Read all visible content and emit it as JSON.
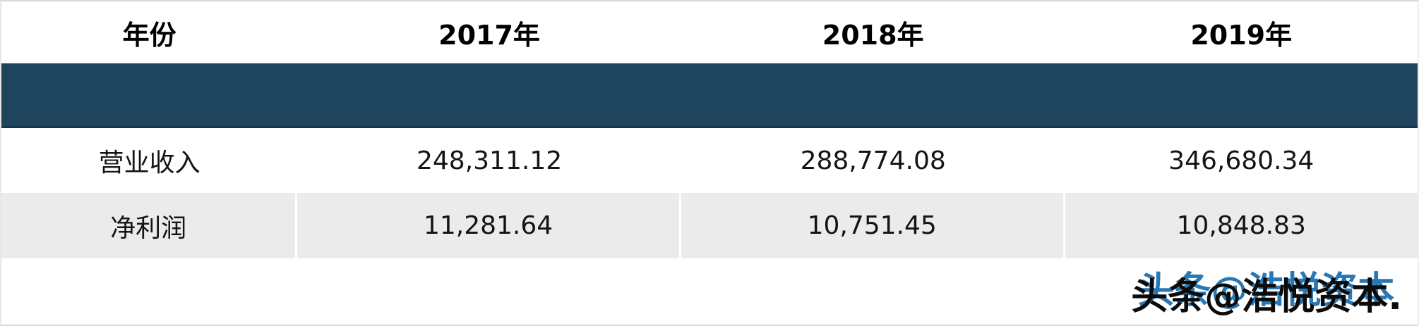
{
  "colors": {
    "band_navy": "#1f455e",
    "row_alt_gray": "#ebebeb",
    "watermark_blue": "#2878b5",
    "watermark_black": "#0b0b0b",
    "border_gray": "#d8d8d8"
  },
  "table": {
    "columns": [
      "年份",
      "2017年",
      "2018年",
      "2019年"
    ],
    "rows": [
      {
        "label": "营业收入",
        "values": [
          "248,311.12",
          "288,774.08",
          "346,680.34"
        ]
      },
      {
        "label": "净利润",
        "values": [
          "11,281.64",
          "10,751.45",
          "10,848.83"
        ]
      }
    ]
  },
  "watermark": {
    "text": "头条@浩悦资本",
    "text_with_period": "头条@浩悦资本."
  },
  "chart_data": {
    "type": "table",
    "row_header_label": "年份",
    "categories": [
      "2017年",
      "2018年",
      "2019年"
    ],
    "series": [
      {
        "name": "营业收入",
        "values": [
          248311.12,
          288774.08,
          346680.34
        ]
      },
      {
        "name": "净利润",
        "values": [
          11281.64,
          10751.45,
          10848.83
        ]
      }
    ],
    "title": "",
    "legend_position": "none",
    "grid": false
  }
}
